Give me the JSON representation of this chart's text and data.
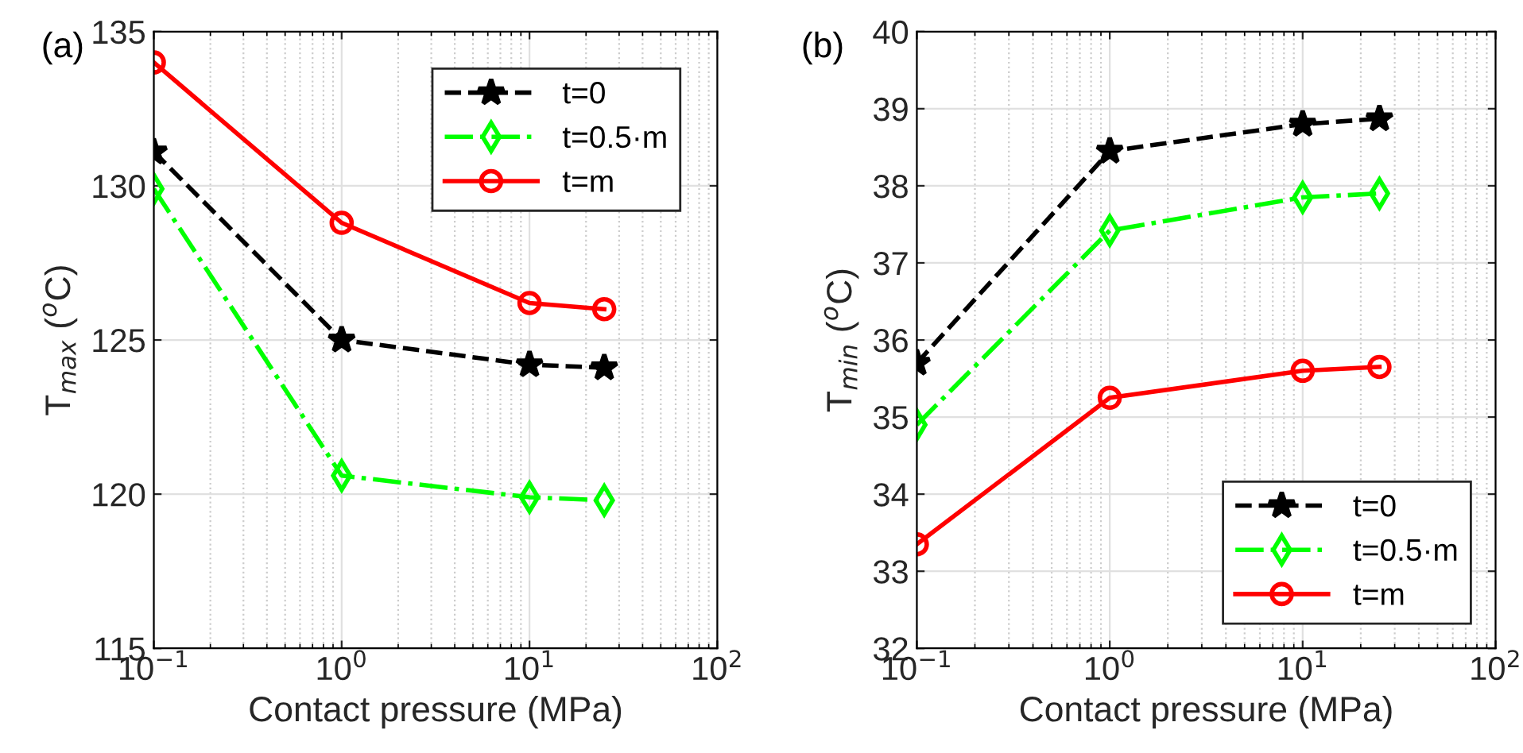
{
  "chart_data": [
    {
      "type": "line",
      "ylabel": "T$_{max}$ ($^{o}$C)",
      "xlabel": "Contact pressure (MPa)",
      "annotations": [
        "(a)"
      ],
      "log": "x",
      "grid": true,
      "legend": "top right",
      "x": [
        0.1,
        1,
        10,
        25
      ],
      "xlim": [
        0.1,
        100
      ],
      "xticks": [
        {
          "value": 0.1,
          "label": "10$^{−1}$"
        },
        {
          "value": 1,
          "label": "10$^{0}$"
        },
        {
          "value": 10,
          "label": "10$^{1}$"
        },
        {
          "value": 100,
          "label": "10$^{2}$"
        }
      ],
      "ylim": [
        115,
        135
      ],
      "yticks": [
        115,
        120,
        125,
        130,
        135
      ],
      "series": [
        {
          "name": "t=0",
          "color": "#000000",
          "marker": "star",
          "line_style": "dashed",
          "values": [
            131.1,
            125.0,
            124.2,
            124.1
          ]
        },
        {
          "name": "t=0.5·m",
          "color": "#00ff00",
          "marker": "diamond",
          "line_style": "dashdot",
          "values": [
            129.9,
            120.6,
            119.9,
            119.8
          ]
        },
        {
          "name": "t=m",
          "color": "#ff0000",
          "marker": "circle",
          "line_style": "solid",
          "values": [
            134.0,
            128.8,
            126.2,
            126.0
          ]
        }
      ]
    },
    {
      "type": "line",
      "ylabel": "T$_{min}$ ($^{o}$C)",
      "xlabel": "Contact pressure (MPa)",
      "annotations": [
        "(b)"
      ],
      "log": "x",
      "grid": true,
      "legend": "bottom right",
      "x": [
        0.1,
        1,
        10,
        25
      ],
      "xlim": [
        0.1,
        100
      ],
      "xticks": [
        {
          "value": 0.1,
          "label": "10$^{−1}$"
        },
        {
          "value": 1,
          "label": "10$^{0}$"
        },
        {
          "value": 10,
          "label": "10$^{1}$"
        },
        {
          "value": 100,
          "label": "10$^{2}$"
        }
      ],
      "ylim": [
        32,
        40
      ],
      "yticks": [
        32,
        33,
        34,
        35,
        36,
        37,
        38,
        39,
        40
      ],
      "series": [
        {
          "name": "t=0",
          "color": "#000000",
          "marker": "star",
          "line_style": "dashed",
          "values": [
            35.7,
            38.45,
            38.8,
            38.87
          ]
        },
        {
          "name": "t=0.5·m",
          "color": "#00ff00",
          "marker": "diamond",
          "line_style": "dashdot",
          "values": [
            34.9,
            37.42,
            37.85,
            37.9
          ]
        },
        {
          "name": "t=m",
          "color": "#ff0000",
          "marker": "circle",
          "line_style": "solid",
          "values": [
            33.35,
            35.25,
            35.6,
            35.65
          ]
        }
      ]
    }
  ]
}
